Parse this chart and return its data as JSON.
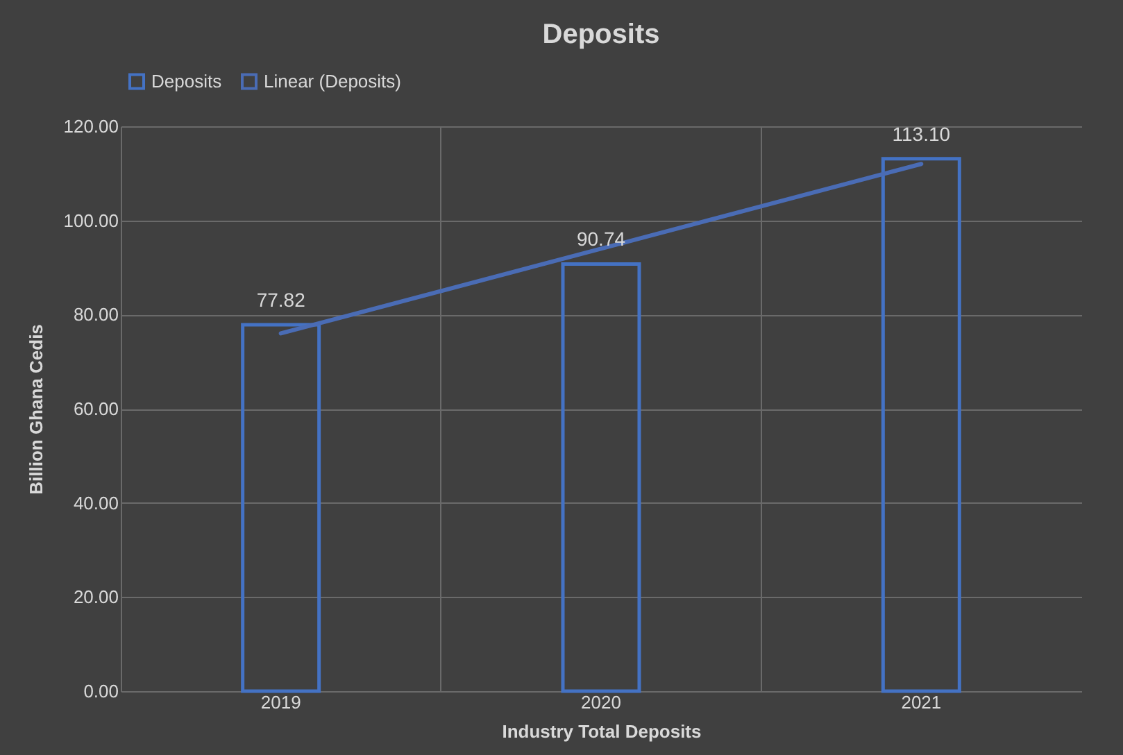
{
  "chart_data": {
    "type": "bar",
    "title": "Deposits",
    "xlabel": "Industry Total Deposits",
    "ylabel": "Billion Ghana Cedis",
    "categories": [
      "2019",
      "2020",
      "2021"
    ],
    "series": [
      {
        "name": "Deposits",
        "color": "#4472c4",
        "values": [
          77.82,
          90.74,
          113.1
        ],
        "value_labels": [
          "77.82",
          "90.74",
          "113.10"
        ]
      },
      {
        "name": "Linear (Deposits)",
        "type": "line",
        "color": "#4a6cb5",
        "values": [
          76,
          94,
          112
        ]
      }
    ],
    "ylim": [
      0,
      120
    ],
    "yticks": [
      {
        "value": 0,
        "label": "0.00"
      },
      {
        "value": 20,
        "label": "20.00"
      },
      {
        "value": 40,
        "label": "40.00"
      },
      {
        "value": 60,
        "label": "60.00"
      },
      {
        "value": 80,
        "label": "80.00"
      },
      {
        "value": 100,
        "label": "100.00"
      },
      {
        "value": 120,
        "label": "120.00"
      }
    ],
    "grid": true,
    "legend": "top"
  }
}
